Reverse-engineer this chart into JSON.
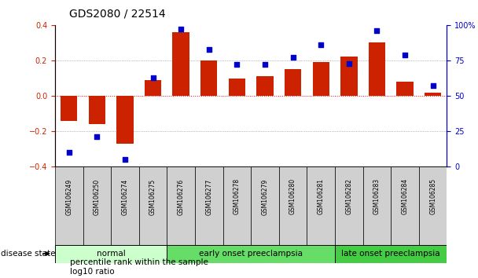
{
  "title": "GDS2080 / 22514",
  "samples": [
    "GSM106249",
    "GSM106250",
    "GSM106274",
    "GSM106275",
    "GSM106276",
    "GSM106277",
    "GSM106278",
    "GSM106279",
    "GSM106280",
    "GSM106281",
    "GSM106282",
    "GSM106283",
    "GSM106284",
    "GSM106285"
  ],
  "log10_ratio": [
    -0.14,
    -0.16,
    -0.27,
    0.09,
    0.36,
    0.2,
    0.1,
    0.11,
    0.15,
    0.19,
    0.22,
    0.3,
    0.08,
    0.02
  ],
  "percentile_rank": [
    10,
    21,
    5,
    63,
    97,
    83,
    72,
    72,
    77,
    86,
    73,
    96,
    79,
    57
  ],
  "ylim_left": [
    -0.4,
    0.4
  ],
  "ylim_right": [
    0,
    100
  ],
  "yticks_left": [
    -0.4,
    -0.2,
    0,
    0.2,
    0.4
  ],
  "yticks_right": [
    0,
    25,
    50,
    75,
    100
  ],
  "ytick_labels_right": [
    "0",
    "25",
    "50",
    "75",
    "100%"
  ],
  "bar_color": "#cc2200",
  "dot_color": "#0000cc",
  "groups": [
    {
      "label": "normal",
      "start": 0,
      "end": 3,
      "color": "#ccffcc"
    },
    {
      "label": "early onset preeclampsia",
      "start": 4,
      "end": 9,
      "color": "#66dd66"
    },
    {
      "label": "late onset preeclampsia",
      "start": 10,
      "end": 13,
      "color": "#44cc44"
    }
  ],
  "legend_bar_label": "log10 ratio",
  "legend_dot_label": "percentile rank within the sample",
  "disease_state_label": "disease state",
  "title_fontsize": 10,
  "tick_fontsize": 7,
  "group_fontsize": 7.5,
  "legend_fontsize": 7.5
}
